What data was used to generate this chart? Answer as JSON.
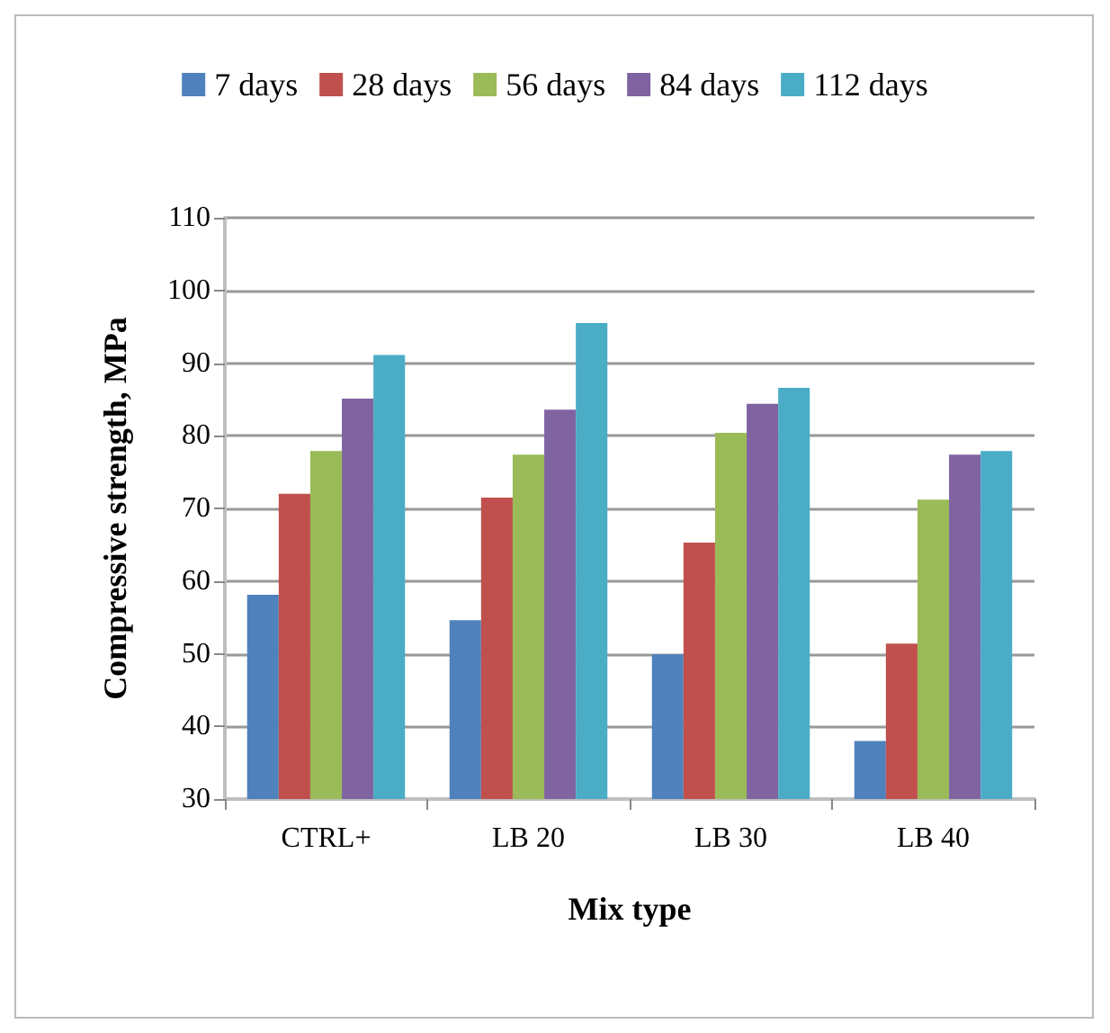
{
  "chart_data": {
    "type": "bar",
    "xlabel": "Mix type",
    "ylabel": "Compressive strength, MPa",
    "categories": [
      "CTRL+",
      "LB 20",
      "LB 30",
      "LB 40"
    ],
    "series": [
      {
        "name": "7 days",
        "color": "#4f81bd",
        "values": [
          58.1,
          54.6,
          49.9,
          38.0
        ]
      },
      {
        "name": "28 days",
        "color": "#c0504d",
        "values": [
          72.0,
          71.5,
          65.3,
          51.4
        ]
      },
      {
        "name": "56 days",
        "color": "#9bbb59",
        "values": [
          77.9,
          77.4,
          80.4,
          71.2
        ]
      },
      {
        "name": "84 days",
        "color": "#8064a2",
        "values": [
          85.1,
          83.6,
          84.4,
          77.4
        ]
      },
      {
        "name": "112 days",
        "color": "#4bacc6",
        "values": [
          91.1,
          95.5,
          86.6,
          77.9
        ]
      }
    ],
    "ylim": [
      30,
      110
    ],
    "yticks": [
      30,
      40,
      50,
      60,
      70,
      80,
      90,
      100,
      110
    ],
    "grid": "y",
    "legend": "top"
  }
}
